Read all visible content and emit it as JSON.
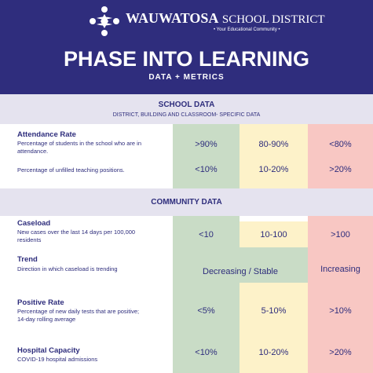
{
  "header": {
    "logo_name": "WAUWATOSA",
    "logo_suffix": "SCHOOL DISTRICT",
    "tagline": "• Your Educational Community •",
    "title": "PHASE INTO LEARNING",
    "subtitle": "DATA + METRICS"
  },
  "sections": [
    {
      "title": "SCHOOL DATA",
      "subtitle": "DISTRICT, BUILDING AND CLASSROOM- SPECIFIC DATA",
      "rows": [
        {
          "label": "Attendance Rate",
          "description": "Percentage of students in the school who are in attendance.",
          "levels": [
            ">90%",
            "80-90%",
            "<80%"
          ]
        },
        {
          "description": "Percentage of unfilled teaching positions.",
          "levels": [
            "<10%",
            "10-20%",
            ">20%"
          ]
        }
      ]
    },
    {
      "title": "COMMUNITY DATA",
      "rows": [
        {
          "label": "Caseload",
          "description": "New cases over the last 14 days per 100,000 residents",
          "levels": [
            "<10",
            "10-100",
            ">100"
          ]
        },
        {
          "label": "Trend",
          "description": "Direction in which caseload is trending",
          "levels": [
            "Decreasing / Stable",
            "Increasing"
          ]
        },
        {
          "label": "Positive Rate",
          "description": "Percentage of new daily tests that are positive; 14-day rolling average",
          "levels": [
            "<5%",
            "5-10%",
            ">10%"
          ]
        },
        {
          "label": "Hospital Capacity",
          "description": "COVID-19 hospital admissions",
          "levels": [
            "<10%",
            "10-20%",
            ">20%"
          ]
        }
      ]
    }
  ]
}
